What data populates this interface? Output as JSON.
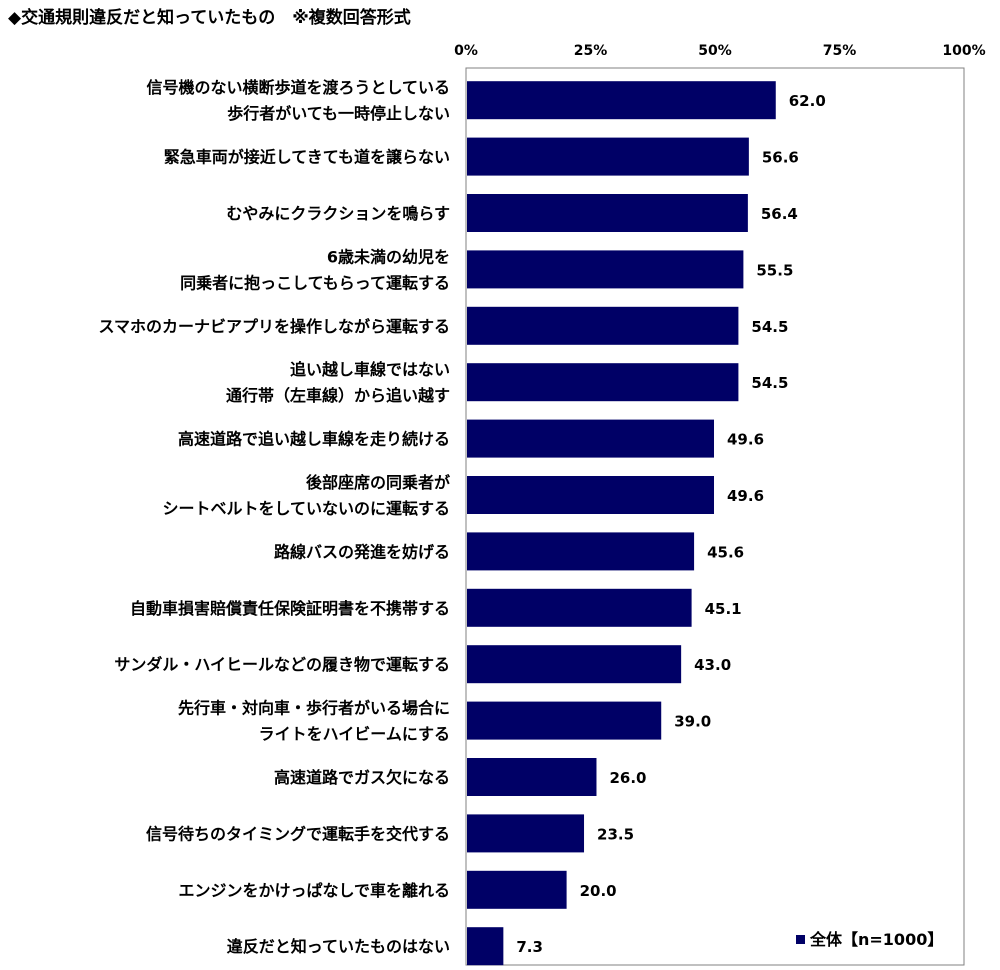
{
  "chart_data": {
    "type": "bar",
    "orientation": "horizontal",
    "title": "◆交通規則違反だと知っていたもの　※複数回答形式",
    "xlim": [
      0,
      100
    ],
    "ticks": [
      "0%",
      "25%",
      "50%",
      "75%",
      "100%"
    ],
    "tick_values": [
      0,
      25,
      50,
      75,
      100
    ],
    "grid": false,
    "bar_color": "#000066",
    "categories": [
      [
        "信号機のない横断歩道を渡ろうとしている",
        "歩行者がいても一時停止しない"
      ],
      [
        "緊急車両が接近してきても道を譲らない"
      ],
      [
        "むやみにクラクションを鳴らす"
      ],
      [
        "6歳未満の幼児を",
        "同乗者に抱っこしてもらって運転する"
      ],
      [
        "スマホのカーナビアプリを操作しながら運転する"
      ],
      [
        "追い越し車線ではない",
        "通行帯（左車線）から追い越す"
      ],
      [
        "高速道路で追い越し車線を走り続ける"
      ],
      [
        "後部座席の同乗者が",
        "シートベルトをしていないのに運転する"
      ],
      [
        "路線バスの発進を妨げる"
      ],
      [
        "自動車損害賠償責任保険証明書を不携帯する"
      ],
      [
        "サンダル・ハイヒールなどの履き物で運転する"
      ],
      [
        "先行車・対向車・歩行者がいる場合に",
        "ライトをハイビームにする"
      ],
      [
        "高速道路でガス欠になる"
      ],
      [
        "信号待ちのタイミングで運転手を交代する"
      ],
      [
        "エンジンをかけっぱなしで車を離れる"
      ],
      [
        "違反だと知っていたものはない"
      ]
    ],
    "series": [
      {
        "name": "全体【n=1000】",
        "values": [
          62.0,
          56.6,
          56.4,
          55.5,
          54.5,
          54.5,
          49.6,
          49.6,
          45.6,
          45.1,
          43.0,
          39.0,
          26.0,
          23.5,
          20.0,
          7.3
        ],
        "labels": [
          "62.0",
          "56.6",
          "56.4",
          "55.5",
          "54.5",
          "54.5",
          "49.6",
          "49.6",
          "45.6",
          "45.1",
          "43.0",
          "39.0",
          "26.0",
          "23.5",
          "20.0",
          "7.3"
        ]
      }
    ],
    "legend": "bottom-right"
  }
}
